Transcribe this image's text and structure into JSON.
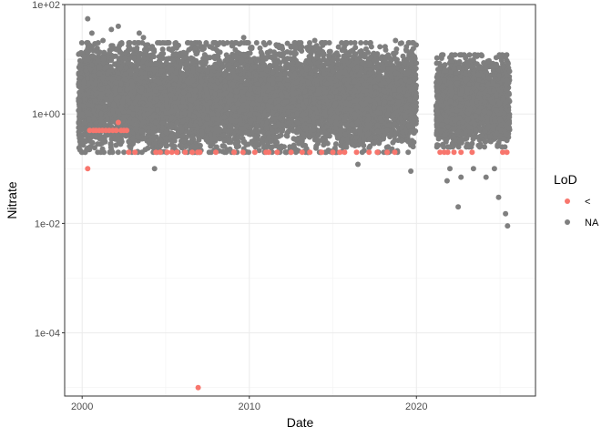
{
  "chart_data": {
    "type": "scatter",
    "xlabel": "Date",
    "ylabel": "Nitrate",
    "x_scale": "date",
    "y_scale": "log10",
    "xlim": [
      "1998-12-15",
      "2027-02-15"
    ],
    "ylim": [
      7e-06,
      100
    ],
    "x_ticks": [
      {
        "value": "2000-01-01",
        "label": "2000"
      },
      {
        "value": "2010-01-01",
        "label": "2010"
      },
      {
        "value": "2020-01-01",
        "label": "2020"
      }
    ],
    "y_ticks": [
      {
        "value": 0.0001,
        "label": "1e-04"
      },
      {
        "value": 0.01,
        "label": "1e-02"
      },
      {
        "value": 1,
        "label": "1e+00"
      },
      {
        "value": 100,
        "label": "1e+02"
      }
    ],
    "grid": true,
    "legend": {
      "title": "LoD",
      "position": "right",
      "entries": [
        {
          "label": "<",
          "color": "#F8766D"
        },
        {
          "label": "NA",
          "color": "#7F7F7F"
        }
      ]
    },
    "series": [
      {
        "name": "<",
        "color": "#F8766D",
        "points": [
          [
            "2000-05-01",
            0.1
          ],
          [
            "2000-06-15",
            0.5
          ],
          [
            "2000-09-01",
            0.5
          ],
          [
            "2000-11-01",
            0.5
          ],
          [
            "2001-01-10",
            0.5
          ],
          [
            "2001-03-20",
            0.5
          ],
          [
            "2001-06-01",
            0.5
          ],
          [
            "2001-08-15",
            0.5
          ],
          [
            "2001-11-01",
            0.5
          ],
          [
            "2002-01-15",
            0.5
          ],
          [
            "2002-03-01",
            0.7
          ],
          [
            "2002-05-01",
            0.5
          ],
          [
            "2002-07-01",
            0.5
          ],
          [
            "2002-09-01",
            0.5
          ],
          [
            "2002-10-15",
            0.2
          ],
          [
            "2003-03-01",
            0.2
          ],
          [
            "2004-06-01",
            0.2
          ],
          [
            "2004-09-01",
            0.2
          ],
          [
            "2005-02-01",
            0.2
          ],
          [
            "2005-05-15",
            0.2
          ],
          [
            "2005-09-01",
            0.2
          ],
          [
            "2006-03-01",
            0.2
          ],
          [
            "2006-08-01",
            0.2
          ],
          [
            "2006-12-01",
            0.2
          ],
          [
            "2006-12-10",
            1e-05
          ],
          [
            "2007-01-15",
            0.2
          ],
          [
            "2008-01-01",
            0.2
          ],
          [
            "2009-02-01",
            0.2
          ],
          [
            "2009-08-15",
            0.2
          ],
          [
            "2010-05-01",
            0.2
          ],
          [
            "2011-01-01",
            0.2
          ],
          [
            "2011-03-01",
            0.2
          ],
          [
            "2011-09-01",
            0.2
          ],
          [
            "2012-07-01",
            0.2
          ],
          [
            "2013-03-01",
            0.2
          ],
          [
            "2013-08-15",
            0.2
          ],
          [
            "2014-05-01",
            0.2
          ],
          [
            "2015-01-01",
            0.2
          ],
          [
            "2015-06-01",
            0.2
          ],
          [
            "2015-09-15",
            0.2
          ],
          [
            "2016-06-01",
            0.2
          ],
          [
            "2017-03-01",
            0.2
          ],
          [
            "2017-09-01",
            0.2
          ],
          [
            "2018-04-01",
            0.2
          ],
          [
            "2018-09-15",
            0.2
          ],
          [
            "2021-06-01",
            0.2
          ],
          [
            "2021-09-01",
            0.2
          ],
          [
            "2021-11-15",
            0.2
          ],
          [
            "2022-04-01",
            0.2
          ],
          [
            "2022-09-01",
            0.2
          ],
          [
            "2023-05-01",
            0.2
          ],
          [
            "2025-03-01",
            0.2
          ],
          [
            "2025-06-01",
            0.2
          ]
        ]
      },
      {
        "name": "NA",
        "color": "#7F7F7F",
        "ranges": [
          {
            "from": "1999-10-15",
            "to": "2019-12-31",
            "low": 0.2,
            "high": 20
          },
          {
            "from": "2021-03-01",
            "to": "2025-07-31",
            "low": 0.25,
            "high": 12
          }
        ],
        "points": [
          [
            "2000-05-01",
            55
          ],
          [
            "2000-08-01",
            30
          ],
          [
            "2001-04-01",
            22
          ],
          [
            "2001-10-01",
            35
          ],
          [
            "2002-03-01",
            40
          ],
          [
            "2003-06-01",
            30
          ],
          [
            "2003-09-01",
            25
          ],
          [
            "2004-05-01",
            0.1
          ],
          [
            "2009-09-01",
            25
          ],
          [
            "2013-12-01",
            22
          ],
          [
            "2016-07-01",
            0.12
          ],
          [
            "2018-10-01",
            22
          ],
          [
            "2019-09-01",
            0.09
          ],
          [
            "2021-11-01",
            0.06
          ],
          [
            "2022-01-01",
            0.1
          ],
          [
            "2022-07-01",
            0.02
          ],
          [
            "2022-09-01",
            0.07
          ],
          [
            "2023-06-01",
            0.1
          ],
          [
            "2024-03-01",
            0.07
          ],
          [
            "2024-09-01",
            0.1
          ],
          [
            "2024-12-01",
            0.03
          ],
          [
            "2025-05-01",
            0.015
          ],
          [
            "2025-06-15",
            0.009
          ]
        ]
      }
    ]
  }
}
